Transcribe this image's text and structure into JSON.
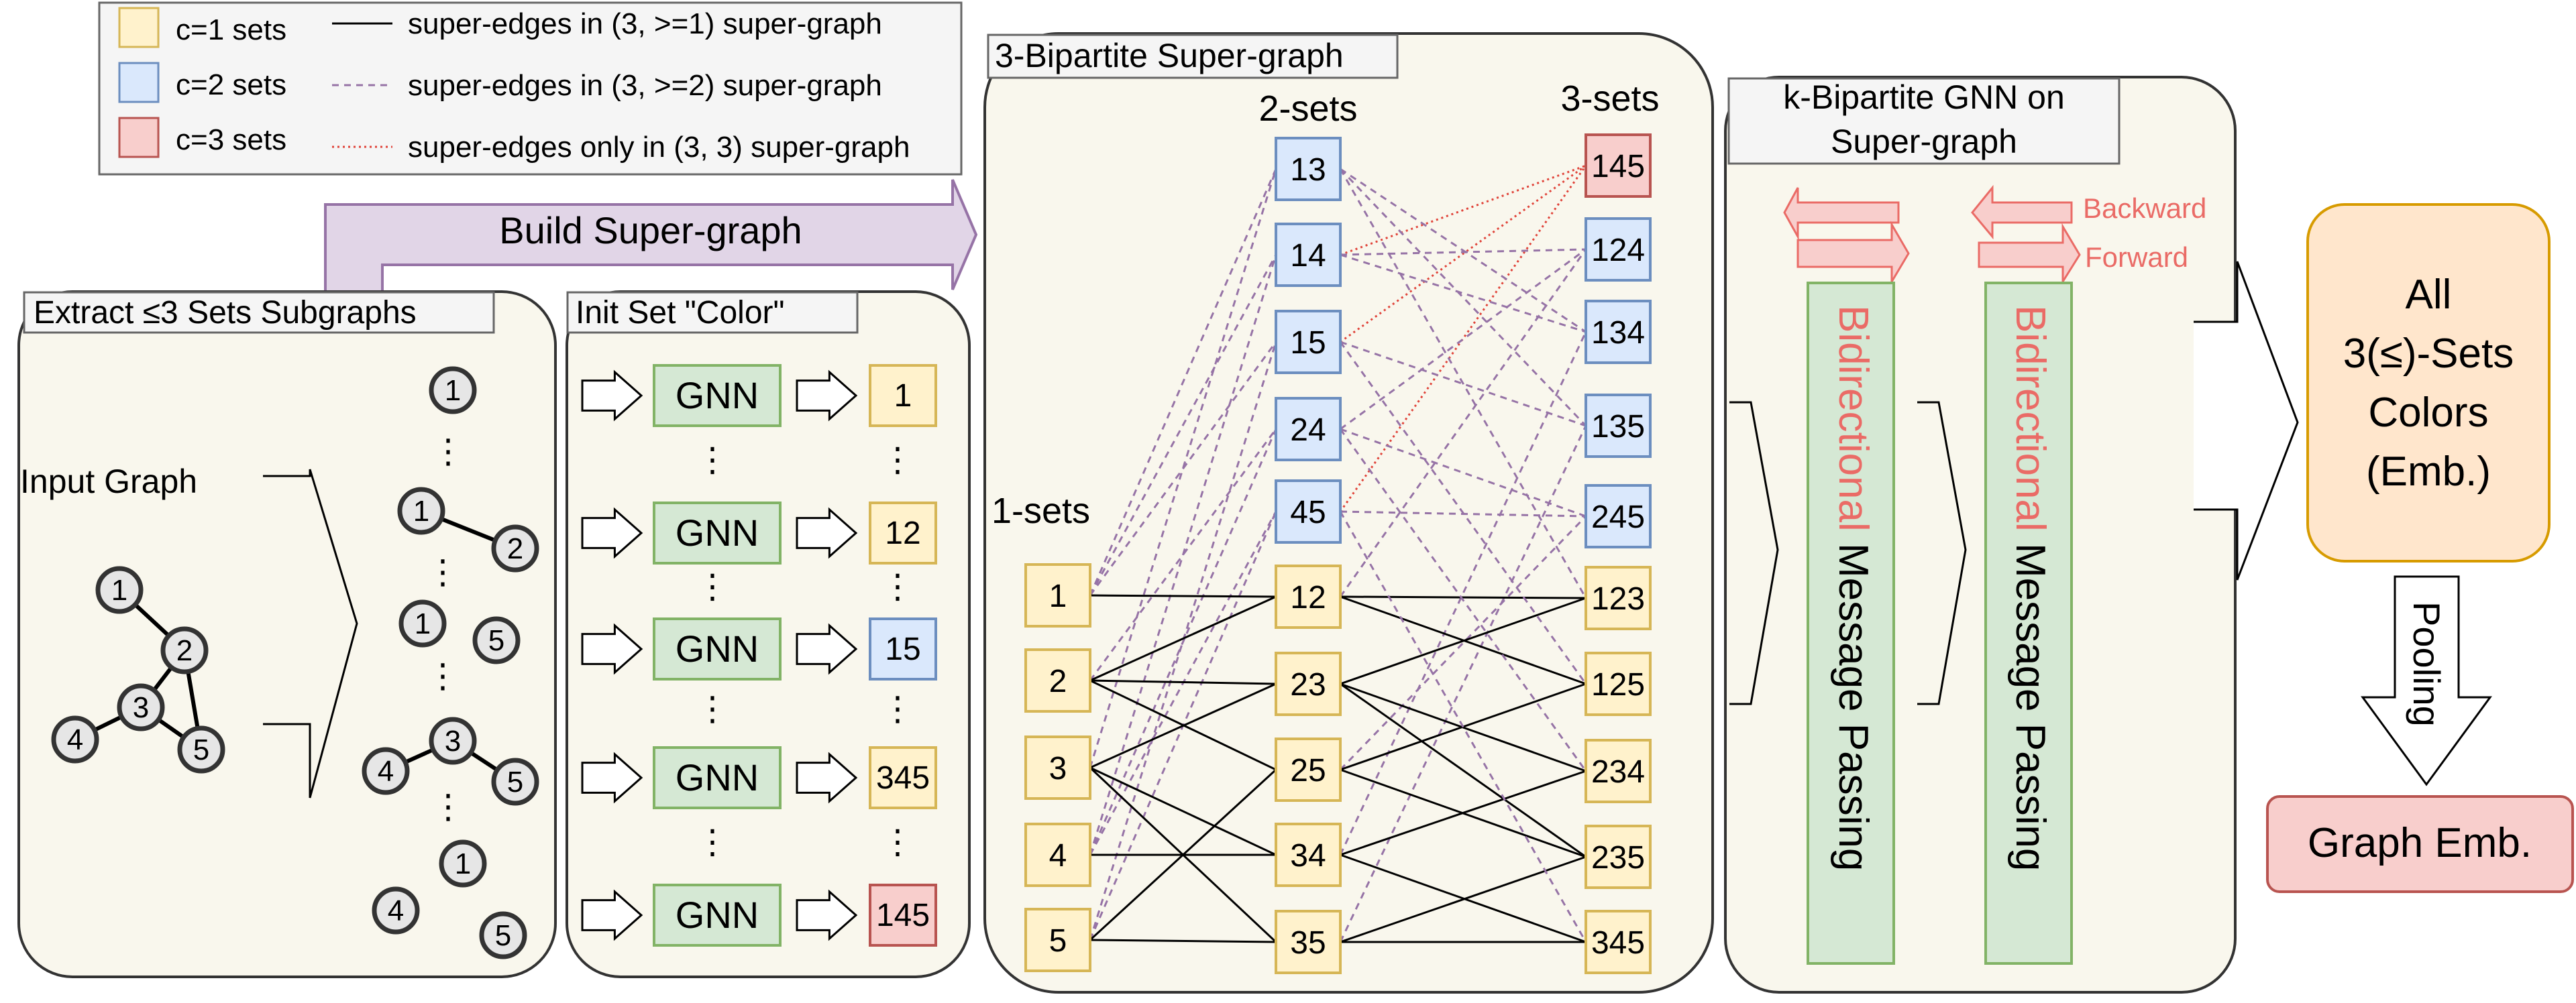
{
  "legend": {
    "sets": [
      {
        "label": "c=1 sets",
        "fill": "#fff2cc",
        "stroke": "#d6b656"
      },
      {
        "label": "c=2 sets",
        "fill": "#dae8fc",
        "stroke": "#6c8ebf"
      },
      {
        "label": "c=3 sets",
        "fill": "#f8cecc",
        "stroke": "#b85450"
      }
    ],
    "edges": [
      {
        "label": "super-edges in (3, >=1) super-graph",
        "style": "solid",
        "color": "#000000"
      },
      {
        "label": "super-edges in (3, >=2) super-graph",
        "style": "dashed",
        "color": "#9673a6"
      },
      {
        "label": "super-edges only in (3, 3) super-graph",
        "style": "dotted",
        "color": "#e0443a"
      }
    ]
  },
  "build_arrow": {
    "label": "Build Super-graph"
  },
  "extract_panel": {
    "title": "Extract ≤3 Sets Subgraphs",
    "input_label": "Input Graph",
    "graph_nodes": [
      "1",
      "2",
      "3",
      "4",
      "5"
    ],
    "ellipsis": "⋮"
  },
  "init_panel": {
    "title": "Init Set \"Color\"",
    "gnn_label": "GNN",
    "outputs": [
      {
        "label": "1",
        "level": 1
      },
      {
        "label": "12",
        "level": 1
      },
      {
        "label": "15",
        "level": 2
      },
      {
        "label": "345",
        "level": 1
      },
      {
        "label": "145",
        "level": 3
      }
    ]
  },
  "supergraph_panel": {
    "title": "3-Bipartite Super-graph",
    "col1_title": "1-sets",
    "col2_title": "2-sets",
    "col3_title": "3-sets",
    "col1": [
      {
        "label": "1",
        "level": 1
      },
      {
        "label": "2",
        "level": 1
      },
      {
        "label": "3",
        "level": 1
      },
      {
        "label": "4",
        "level": 1
      },
      {
        "label": "5",
        "level": 1
      }
    ],
    "col2": [
      {
        "label": "13",
        "level": 2
      },
      {
        "label": "14",
        "level": 2
      },
      {
        "label": "15",
        "level": 2
      },
      {
        "label": "24",
        "level": 2
      },
      {
        "label": "45",
        "level": 2
      },
      {
        "label": "12",
        "level": 1
      },
      {
        "label": "23",
        "level": 1
      },
      {
        "label": "25",
        "level": 1
      },
      {
        "label": "34",
        "level": 1
      },
      {
        "label": "35",
        "level": 1
      }
    ],
    "col3": [
      {
        "label": "145",
        "level": 3
      },
      {
        "label": "124",
        "level": 2
      },
      {
        "label": "134",
        "level": 2
      },
      {
        "label": "135",
        "level": 2
      },
      {
        "label": "245",
        "level": 2
      },
      {
        "label": "123",
        "level": 1
      },
      {
        "label": "125",
        "level": 1
      },
      {
        "label": "234",
        "level": 1
      },
      {
        "label": "235",
        "level": 1
      },
      {
        "label": "345",
        "level": 1
      }
    ]
  },
  "gnn_panel": {
    "title_line1": "k-Bipartite GNN on",
    "title_line2": "Super-graph",
    "backward_label": "Backward",
    "forward_label": "Forward",
    "bar_word1": "Bidirectional",
    "bar_word2": " Message Passing"
  },
  "output": {
    "box_lines": [
      "All",
      "3(≤)-Sets",
      "Colors",
      "(Emb.)"
    ],
    "pooling_label": "Pooling",
    "graph_emb_label": "Graph Emb."
  },
  "colors": {
    "panel_fill": "#f9f7ed",
    "yellow_fill": "#fff2cc",
    "yellow_stroke": "#d6b656",
    "blue_fill": "#dae8fc",
    "blue_stroke": "#6c8ebf",
    "red_fill": "#f8cecc",
    "red_stroke": "#b85450",
    "green_fill": "#d5e8d4",
    "green_stroke": "#82b366",
    "purple_fill": "#e1d5e7",
    "purple_stroke": "#9673a6",
    "orange_fill": "#ffe6cc",
    "orange_stroke": "#d79b00",
    "accent_red": "#ea6b66"
  }
}
